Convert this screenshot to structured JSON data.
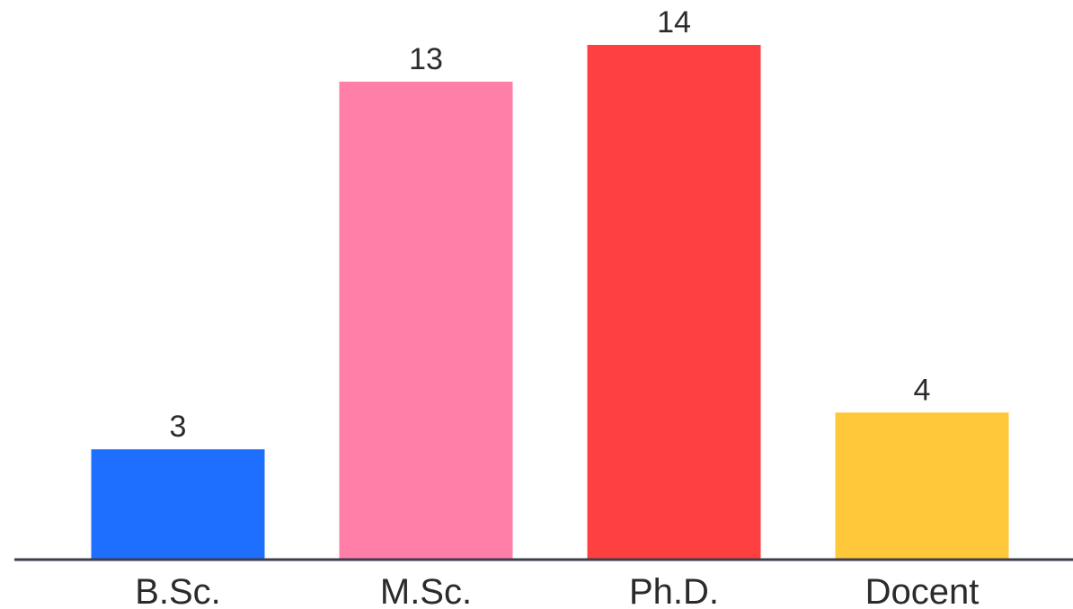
{
  "chart_data": {
    "type": "bar",
    "categories": [
      "B.Sc.",
      "M.Sc.",
      "Ph.D.",
      "Docent"
    ],
    "values": [
      3,
      13,
      14,
      4
    ],
    "colors": [
      "#1f6fff",
      "#ff7fa8",
      "#ff4040",
      "#ffc83a"
    ],
    "axis_color": "#3a3f4a",
    "title": "",
    "xlabel": "",
    "ylabel": "",
    "ylim": [
      0,
      14
    ],
    "grid": false,
    "legend": "none"
  }
}
